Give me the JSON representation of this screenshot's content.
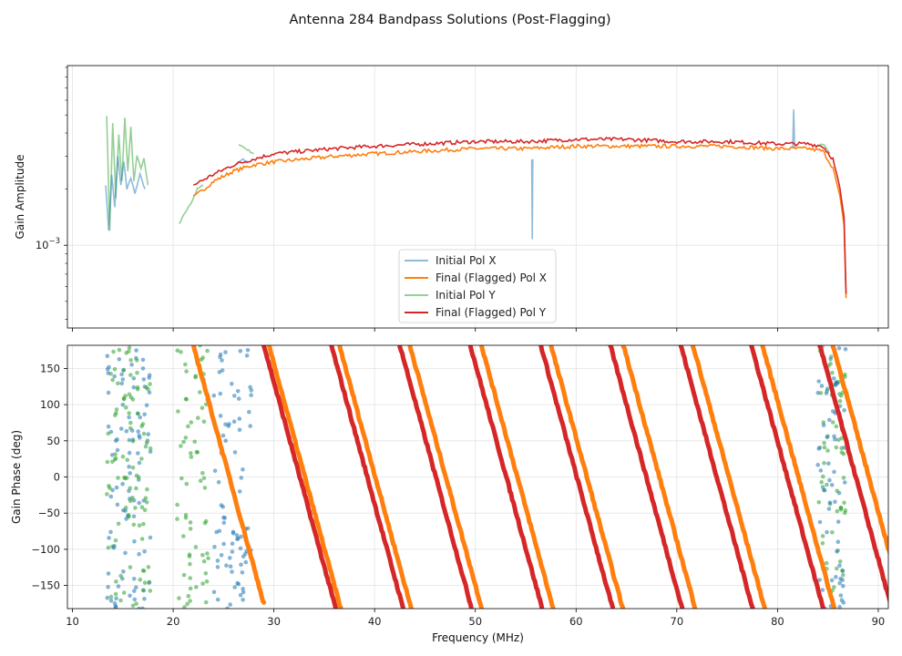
{
  "chart_data": {
    "type": "line",
    "title": "Antenna 284 Bandpass Solutions (Post-Flagging)",
    "x": {
      "label": "Frequency (MHz)",
      "range": [
        9.5,
        91
      ],
      "ticks": [
        10,
        20,
        30,
        40,
        50,
        60,
        70,
        80,
        90
      ]
    },
    "panels": [
      {
        "id": "amplitude",
        "ylabel": "Gain Amplitude",
        "yscale": "log",
        "ylim": [
          0.00036,
          0.0092
        ],
        "yticks": [
          {
            "value": 0.001,
            "label": "10−3"
          }
        ],
        "legend_position": "bottom-center",
        "series": [
          {
            "name": "Initial Pol X",
            "color": "#1f77b4",
            "alpha": 0.5,
            "segments": [
              [
                [
                  13.3,
                  0.0021
                ],
                [
                  13.6,
                  0.0012
                ],
                [
                  13.9,
                  0.0024
                ],
                [
                  14.2,
                  0.0016
                ],
                [
                  14.5,
                  0.003
                ],
                [
                  14.8,
                  0.0021
                ],
                [
                  15.1,
                  0.0028
                ],
                [
                  15.4,
                  0.002
                ],
                [
                  15.8,
                  0.0023
                ],
                [
                  16.2,
                  0.0019
                ],
                [
                  16.7,
                  0.0024
                ],
                [
                  17.2,
                  0.002
                ]
              ],
              [
                [
                  26.2,
                  0.0027
                ],
                [
                  26.8,
                  0.0029
                ],
                [
                  27.4,
                  0.0028
                ]
              ],
              [
                [
                  55.6,
                  0.0029
                ],
                [
                  55.65,
                  0.00108
                ],
                [
                  55.7,
                  0.0029
                ]
              ],
              [
                [
                  81.5,
                  0.0033
                ],
                [
                  81.6,
                  0.0054
                ],
                [
                  81.7,
                  0.0033
                ]
              ]
            ]
          },
          {
            "name": "Final (Flagged) Pol X",
            "color": "#ff7f0e",
            "alpha": 1.0,
            "segments": [
              [
                [
                  22.0,
                  0.0018
                ],
                [
                  24,
                  0.0022
                ],
                [
                  26,
                  0.0025
                ],
                [
                  28,
                  0.0027
                ],
                [
                  30,
                  0.0028
                ],
                [
                  33,
                  0.0029
                ],
                [
                  36,
                  0.003
                ],
                [
                  40,
                  0.0031
                ],
                [
                  45,
                  0.0032
                ],
                [
                  50,
                  0.0033
                ],
                [
                  55,
                  0.0033
                ],
                [
                  60,
                  0.0034
                ],
                [
                  65,
                  0.0034
                ],
                [
                  70,
                  0.0034
                ],
                [
                  75,
                  0.0034
                ],
                [
                  80,
                  0.0033
                ],
                [
                  83,
                  0.0033
                ],
                [
                  84.5,
                  0.0032
                ],
                [
                  85.5,
                  0.0026
                ],
                [
                  86.2,
                  0.0018
                ],
                [
                  86.6,
                  0.0013
                ],
                [
                  86.8,
                  0.00052
                ]
              ]
            ]
          },
          {
            "name": "Initial Pol Y",
            "color": "#2ca02c",
            "alpha": 0.5,
            "segments": [
              [
                [
                  13.4,
                  0.005
                ],
                [
                  13.7,
                  0.0012
                ],
                [
                  14.0,
                  0.0045
                ],
                [
                  14.3,
                  0.0018
                ],
                [
                  14.6,
                  0.0039
                ],
                [
                  14.9,
                  0.0022
                ],
                [
                  15.2,
                  0.0048
                ],
                [
                  15.5,
                  0.0025
                ],
                [
                  15.8,
                  0.0043
                ],
                [
                  16.1,
                  0.0022
                ],
                [
                  16.4,
                  0.003
                ],
                [
                  16.8,
                  0.0026
                ],
                [
                  17.1,
                  0.0029
                ],
                [
                  17.5,
                  0.0021
                ]
              ],
              [
                [
                  20.6,
                  0.0013
                ],
                [
                  21.2,
                  0.0015
                ],
                [
                  21.8,
                  0.0017
                ],
                [
                  22.4,
                  0.002
                ],
                [
                  23.0,
                  0.0021
                ]
              ],
              [
                [
                  26.5,
                  0.0035
                ],
                [
                  27.2,
                  0.0033
                ],
                [
                  28.0,
                  0.0031
                ]
              ],
              [
                [
                  84.0,
                  0.0034
                ],
                [
                  84.6,
                  0.0035
                ],
                [
                  85.2,
                  0.0031
                ]
              ]
            ]
          },
          {
            "name": "Final (Flagged) Pol Y",
            "color": "#d62728",
            "alpha": 1.0,
            "segments": [
              [
                [
                  22.0,
                  0.0021
                ],
                [
                  24,
                  0.0024
                ],
                [
                  26,
                  0.0027
                ],
                [
                  28,
                  0.0029
                ],
                [
                  30,
                  0.0031
                ],
                [
                  33,
                  0.0032
                ],
                [
                  36,
                  0.0033
                ],
                [
                  40,
                  0.0034
                ],
                [
                  45,
                  0.0035
                ],
                [
                  50,
                  0.0036
                ],
                [
                  55,
                  0.0036
                ],
                [
                  60,
                  0.0037
                ],
                [
                  65,
                  0.0037
                ],
                [
                  70,
                  0.0036
                ],
                [
                  75,
                  0.0036
                ],
                [
                  80,
                  0.0035
                ],
                [
                  83,
                  0.0035
                ],
                [
                  84.5,
                  0.0034
                ],
                [
                  85.5,
                  0.0029
                ],
                [
                  86.2,
                  0.002
                ],
                [
                  86.6,
                  0.0014
                ],
                [
                  86.8,
                  0.00055
                ]
              ]
            ]
          }
        ]
      },
      {
        "id": "phase",
        "ylabel": "Gain Phase (deg)",
        "yscale": "linear",
        "ylim": [
          -182,
          182
        ],
        "yticks": [
          -150,
          -100,
          -50,
          0,
          50,
          100,
          150
        ],
        "series": [
          {
            "name": "Initial Pol X",
            "color": "#1f77b4",
            "alpha": 0.55
          },
          {
            "name": "Final (Flagged) Pol X",
            "color": "#ff7f0e",
            "alpha": 1.0
          },
          {
            "name": "Initial Pol Y",
            "color": "#2ca02c",
            "alpha": 0.55
          },
          {
            "name": "Final (Flagged) Pol Y",
            "color": "#d62728",
            "alpha": 1.0
          }
        ],
        "phase_wraps": [
          {
            "series": "Final (Flagged) Pol Y",
            "x_at_top": [
              29.0,
              35.7,
              42.5,
              49.5,
              56.5,
              63.4,
              70.4,
              77.4,
              84.2
            ],
            "slope_deg_per_mhz": -51
          },
          {
            "series": "Final (Flagged) Pol X",
            "x_at_top": [
              29.5,
              36.5,
              43.5,
              50.6,
              57.5,
              64.7,
              71.6,
              78.5,
              85.5
            ],
            "slope_deg_per_mhz": -51
          },
          {
            "series": "Final (Flagged) Pol X",
            "x_at_top": [
              22.0
            ],
            "slope_deg_per_mhz": -51,
            "x_end": 29.0
          }
        ],
        "noisy_clusters": [
          {
            "series": "Initial Pol X",
            "x_range": [
              13.4,
              17.8
            ]
          },
          {
            "series": "Initial Pol Y",
            "x_range": [
              13.4,
              17.8
            ]
          },
          {
            "series": "Initial Pol Y",
            "x_range": [
              20.4,
              23.5
            ]
          },
          {
            "series": "Initial Pol X",
            "x_range": [
              24.0,
              27.8
            ]
          },
          {
            "series": "Initial Pol Y",
            "x_range": [
              84.0,
              86.8
            ]
          },
          {
            "series": "Initial Pol X",
            "x_range": [
              84.0,
              86.8
            ]
          }
        ]
      }
    ]
  }
}
